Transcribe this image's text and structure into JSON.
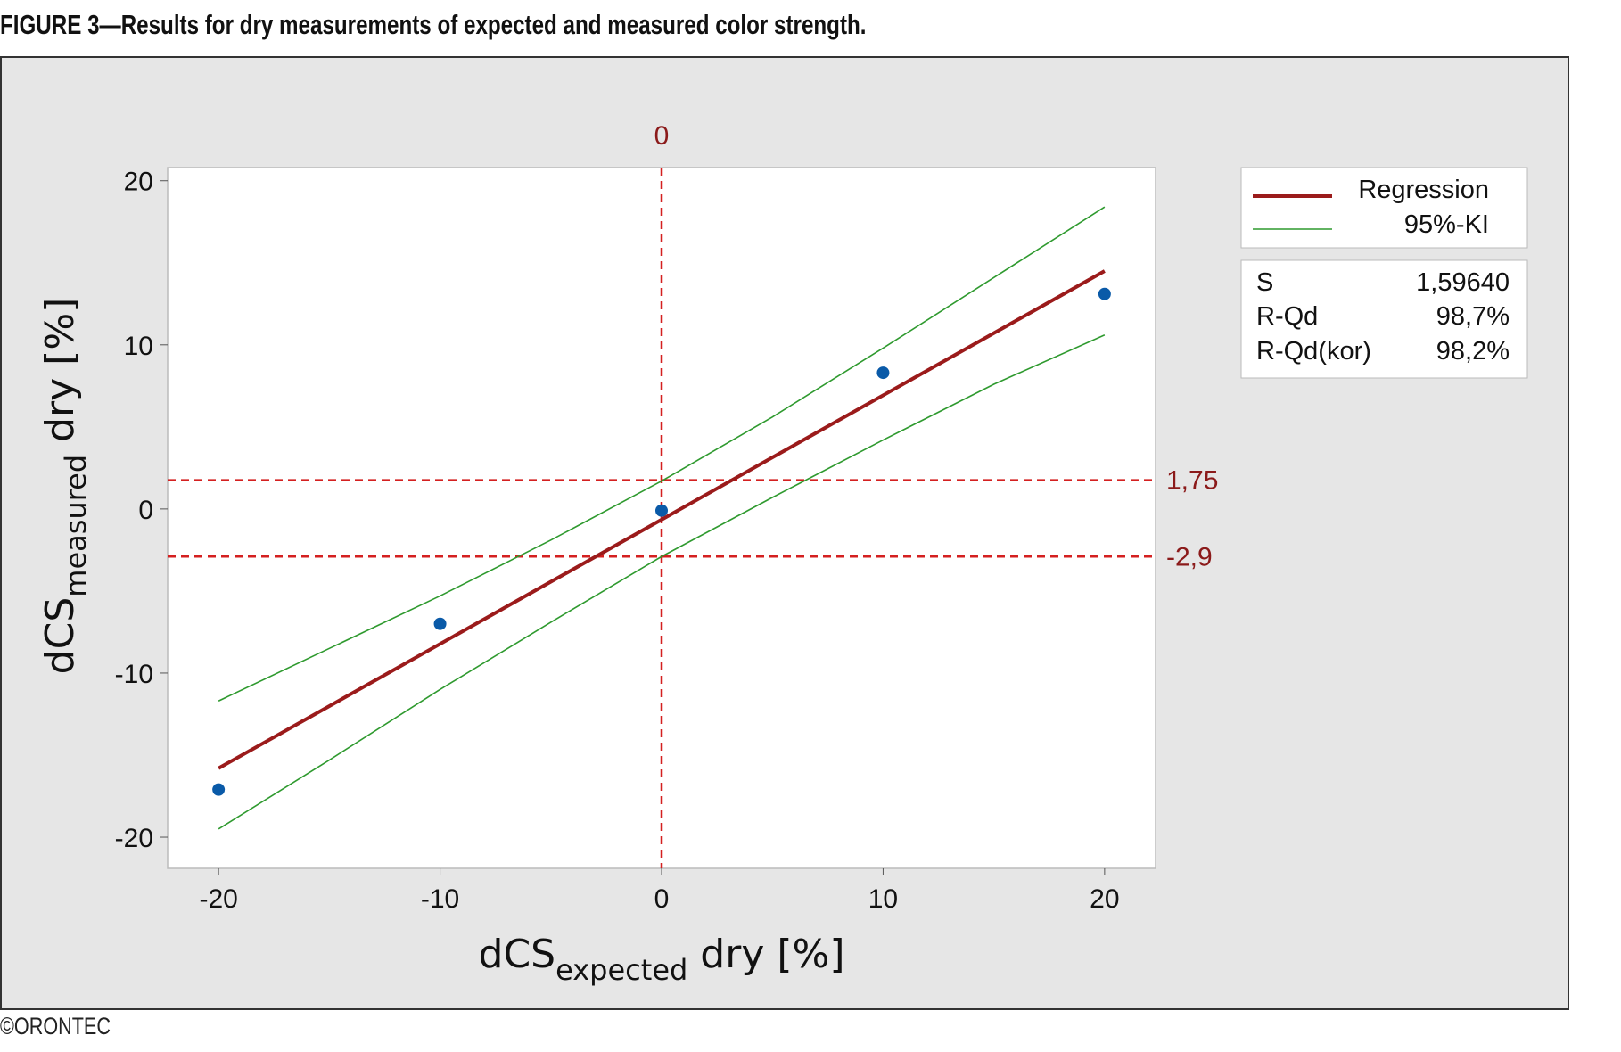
{
  "figure_title": "FIGURE 3—Results for dry measurements of expected and measured color strength.",
  "copyright": "©ORONTEC",
  "chart_data": {
    "type": "scatter",
    "xlabel": {
      "main": "dCS",
      "sub": "expected",
      "rest": " dry [%]"
    },
    "ylabel": {
      "main": "dCS",
      "sub": "measured",
      "rest": " dry [%]"
    },
    "xlim": [
      -22.3,
      22.3
    ],
    "ylim": [
      -21.9,
      20.8
    ],
    "xticks": [
      -20,
      -10,
      0,
      10,
      20
    ],
    "yticks": [
      -20,
      -10,
      0,
      10,
      20
    ],
    "grid": false,
    "points": {
      "x": [
        -20,
        -10,
        0,
        10,
        20
      ],
      "y": [
        -17.1,
        -7.0,
        -0.1,
        8.3,
        13.1
      ],
      "color": "#0a5aa8"
    },
    "series": [
      {
        "name": "Regression",
        "color": "#9b1b1b",
        "x": [
          -20,
          20
        ],
        "y": [
          -15.8,
          14.5
        ]
      },
      {
        "name": "95%-KI",
        "color": "#2f9a2f",
        "x": [
          -20,
          -15,
          -10,
          -5,
          0,
          5,
          10,
          15,
          20
        ],
        "y": [
          -11.7,
          -8.5,
          -5.3,
          -1.9,
          1.7,
          5.6,
          9.8,
          14.1,
          18.4
        ]
      },
      {
        "color": "#2f9a2f",
        "x": [
          -20,
          -15,
          -10,
          -5,
          0,
          5,
          10,
          15,
          20
        ],
        "y": [
          -19.5,
          -15.3,
          -11.0,
          -6.9,
          -2.9,
          0.7,
          4.2,
          7.6,
          10.6
        ]
      }
    ],
    "reference_lines": [
      {
        "axis": "x",
        "value": 0,
        "label": "0",
        "color": "#d42020"
      },
      {
        "axis": "y",
        "value": 1.75,
        "label": "1,75",
        "color": "#d42020"
      },
      {
        "axis": "y",
        "value": -2.9,
        "label": "-2,9",
        "color": "#d42020"
      }
    ],
    "legend": {
      "placement": "right",
      "entries": [
        "Regression",
        "95%-KI"
      ]
    },
    "stats": [
      {
        "label": "S",
        "value": "1,59640"
      },
      {
        "label": "R-Qd",
        "value": "98,7%"
      },
      {
        "label": "R-Qd(kor)",
        "value": "98,2%"
      }
    ]
  }
}
